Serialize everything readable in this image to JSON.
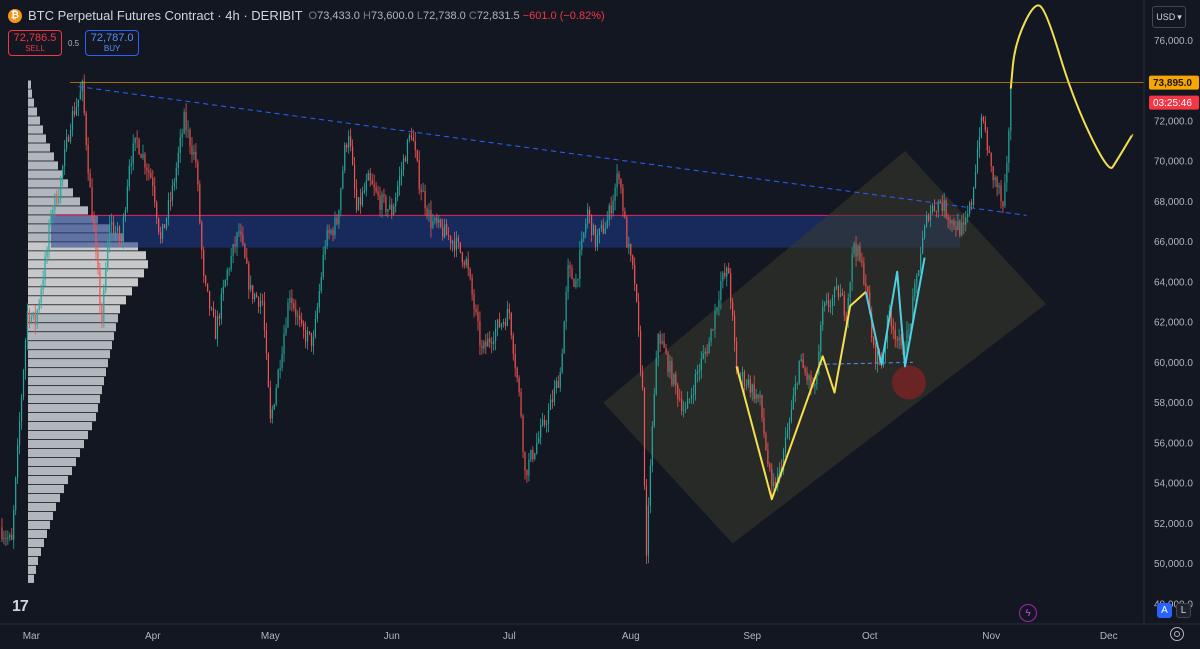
{
  "header": {
    "title": "BTC Perpetual Futures Contract · 4h · DERIBIT",
    "open_label": "O",
    "open": "73,433.0",
    "high_label": "H",
    "high": "73,600.0",
    "low_label": "L",
    "low": "72,738.0",
    "close_label": "C",
    "close": "72,831.5",
    "change": "−601.0 (−0.82%)",
    "icon": "bitcoin-icon"
  },
  "trade": {
    "sell_price": "72,786.5",
    "sell_label": "SELL",
    "spread": "0.5",
    "buy_price": "72,787.0",
    "buy_label": "BUY"
  },
  "currency": "USD",
  "price_tags": {
    "last": "73,895.0",
    "countdown": "03:25:46"
  },
  "scale_buttons": {
    "auto": "A",
    "log": "L"
  },
  "colors": {
    "background": "#131722",
    "up": "#26a69a",
    "down": "#ef5350",
    "last_price": "#f7a600",
    "countdown": "#f23645",
    "trendline": "#2962ff",
    "zone": "#1e3a8a",
    "projection": "#f4e04d",
    "buy": "#2962ff",
    "sell": "#f23645"
  },
  "icons": [
    "bitcoin-icon",
    "tradingview-logo",
    "lightning-icon",
    "settings-icon",
    "chevron-down-icon"
  ],
  "chart_data": {
    "type": "candlestick",
    "title": "BTC Perpetual Futures Contract · 4h · DERIBIT",
    "ylim": [
      47000,
      78000
    ],
    "grid": false,
    "y_ticks": [
      "76,000.0",
      "74,000.0",
      "72,000.0",
      "70,000.0",
      "68,000.0",
      "66,000.0",
      "64,000.0",
      "62,000.0",
      "60,000.0",
      "58,000.0",
      "56,000.0",
      "54,000.0",
      "52,000.0",
      "50,000.0",
      "48,000.0"
    ],
    "y_tick_values": [
      76000,
      74000,
      72000,
      70000,
      68000,
      66000,
      64000,
      62000,
      60000,
      58000,
      56000,
      54000,
      52000,
      50000,
      48000
    ],
    "x_ticks": [
      "Mar",
      "Apr",
      "May",
      "Jun",
      "Jul",
      "Aug",
      "Sep",
      "Oct",
      "Nov",
      "Dec"
    ],
    "x_tick_dates": [
      "2024-03-01",
      "2024-04-01",
      "2024-05-01",
      "2024-06-01",
      "2024-07-01",
      "2024-08-01",
      "2024-09-01",
      "2024-10-01",
      "2024-11-01",
      "2024-12-01"
    ],
    "x_range": [
      "2024-02-22",
      "2024-12-10"
    ],
    "price_path": [
      [
        "2024-02-22",
        51800
      ],
      [
        "2024-02-25",
        51000
      ],
      [
        "2024-02-27",
        57000
      ],
      [
        "2024-02-29",
        62500
      ],
      [
        "2024-03-02",
        62000
      ],
      [
        "2024-03-05",
        65500
      ],
      [
        "2024-03-06",
        67500
      ],
      [
        "2024-03-08",
        68500
      ],
      [
        "2024-03-11",
        72000
      ],
      [
        "2024-03-14",
        73600
      ],
      [
        "2024-03-16",
        68500
      ],
      [
        "2024-03-19",
        62000
      ],
      [
        "2024-03-21",
        67000
      ],
      [
        "2024-03-24",
        66000
      ],
      [
        "2024-03-26",
        70000
      ],
      [
        "2024-03-28",
        71000
      ],
      [
        "2024-04-01",
        69000
      ],
      [
        "2024-04-03",
        66000
      ],
      [
        "2024-04-06",
        68500
      ],
      [
        "2024-04-09",
        72000
      ],
      [
        "2024-04-12",
        70000
      ],
      [
        "2024-04-14",
        64000
      ],
      [
        "2024-04-17",
        61500
      ],
      [
        "2024-04-20",
        64500
      ],
      [
        "2024-04-23",
        66500
      ],
      [
        "2024-04-26",
        63500
      ],
      [
        "2024-04-29",
        63000
      ],
      [
        "2024-05-01",
        57000
      ],
      [
        "2024-05-03",
        59500
      ],
      [
        "2024-05-06",
        63500
      ],
      [
        "2024-05-09",
        61500
      ],
      [
        "2024-05-12",
        61000
      ],
      [
        "2024-05-15",
        66000
      ],
      [
        "2024-05-18",
        67000
      ],
      [
        "2024-05-20",
        70500
      ],
      [
        "2024-05-21",
        71500
      ],
      [
        "2024-05-23",
        67500
      ],
      [
        "2024-05-26",
        69000
      ],
      [
        "2024-05-29",
        68000
      ],
      [
        "2024-06-01",
        67500
      ],
      [
        "2024-06-04",
        70000
      ],
      [
        "2024-06-06",
        71500
      ],
      [
        "2024-06-08",
        69000
      ],
      [
        "2024-06-11",
        67000
      ],
      [
        "2024-06-14",
        66500
      ],
      [
        "2024-06-17",
        66000
      ],
      [
        "2024-06-20",
        65000
      ],
      [
        "2024-06-24",
        60500
      ],
      [
        "2024-06-27",
        61500
      ],
      [
        "2024-07-01",
        62500
      ],
      [
        "2024-07-04",
        57500
      ],
      [
        "2024-07-05",
        54500
      ],
      [
        "2024-07-08",
        56000
      ],
      [
        "2024-07-11",
        57500
      ],
      [
        "2024-07-14",
        59500
      ],
      [
        "2024-07-16",
        64500
      ],
      [
        "2024-07-18",
        64000
      ],
      [
        "2024-07-21",
        67500
      ],
      [
        "2024-07-23",
        66000
      ],
      [
        "2024-07-26",
        67000
      ],
      [
        "2024-07-29",
        69500
      ],
      [
        "2024-07-31",
        66000
      ],
      [
        "2024-08-02",
        64000
      ],
      [
        "2024-08-04",
        58500
      ],
      [
        "2024-08-05",
        50000
      ],
      [
        "2024-08-06",
        55000
      ],
      [
        "2024-08-08",
        61500
      ],
      [
        "2024-08-12",
        59000
      ],
      [
        "2024-08-15",
        57500
      ],
      [
        "2024-08-18",
        59500
      ],
      [
        "2024-08-21",
        61000
      ],
      [
        "2024-08-24",
        64000
      ],
      [
        "2024-08-26",
        64500
      ],
      [
        "2024-08-28",
        59500
      ],
      [
        "2024-08-31",
        59000
      ],
      [
        "2024-09-03",
        58000
      ],
      [
        "2024-09-06",
        53500
      ],
      [
        "2024-09-08",
        54500
      ],
      [
        "2024-09-11",
        57500
      ],
      [
        "2024-09-13",
        60000
      ],
      [
        "2024-09-17",
        58500
      ],
      [
        "2024-09-19",
        62500
      ],
      [
        "2024-09-23",
        63500
      ],
      [
        "2024-09-25",
        62500
      ],
      [
        "2024-09-27",
        66000
      ],
      [
        "2024-09-30",
        64000
      ],
      [
        "2024-10-02",
        60500
      ],
      [
        "2024-10-04",
        60000
      ],
      [
        "2024-10-06",
        62500
      ],
      [
        "2024-10-09",
        60500
      ],
      [
        "2024-10-11",
        61500
      ],
      [
        "2024-10-14",
        65500
      ],
      [
        "2024-10-16",
        67500
      ],
      [
        "2024-10-19",
        68000
      ],
      [
        "2024-10-22",
        67000
      ],
      [
        "2024-10-25",
        66500
      ],
      [
        "2024-10-27",
        68000
      ],
      [
        "2024-10-29",
        71500
      ],
      [
        "2024-10-30",
        72000
      ],
      [
        "2024-11-01",
        69500
      ],
      [
        "2024-11-03",
        68500
      ],
      [
        "2024-11-04",
        67500
      ],
      [
        "2024-11-05",
        69500
      ],
      [
        "2024-11-06",
        73895
      ]
    ],
    "annotations": {
      "last_price_line": 73895,
      "trendline": [
        [
          "2024-03-13",
          73700
        ],
        [
          "2024-11-10",
          67300
        ]
      ],
      "resistance_zone": {
        "from": "2024-03-06",
        "to": "2024-10-24",
        "top": 67300,
        "bottom": 65700
      },
      "channel": [
        [
          "2024-07-25",
          58000
        ],
        [
          "2024-10-10",
          70500
        ],
        [
          "2024-11-15",
          62900
        ],
        [
          "2024-08-27",
          51000
        ]
      ],
      "neckline": [
        [
          "2024-09-18",
          59900
        ],
        [
          "2024-10-12",
          60000
        ]
      ],
      "circle": [
        "2024-10-11",
        59000
      ],
      "yellow_path": [
        [
          "2024-08-28",
          59800
        ],
        [
          "2024-09-06",
          53200
        ],
        [
          "2024-09-19",
          60300
        ],
        [
          "2024-09-22",
          58500
        ],
        [
          "2024-09-26",
          62800
        ],
        [
          "2024-09-30",
          63500
        ]
      ],
      "cyan_path": [
        [
          "2024-09-30",
          63500
        ],
        [
          "2024-10-04",
          59900
        ],
        [
          "2024-10-08",
          64500
        ],
        [
          "2024-10-10",
          59800
        ],
        [
          "2024-10-15",
          65200
        ]
      ],
      "projection": [
        [
          "2024-11-06",
          73600
        ],
        [
          "2024-11-07",
          75800
        ],
        [
          "2024-11-12",
          77900
        ],
        [
          "2024-11-15",
          77500
        ],
        [
          "2024-11-22",
          73000
        ],
        [
          "2024-12-01",
          69400
        ],
        [
          "2024-12-03",
          70000
        ],
        [
          "2024-12-07",
          71300
        ]
      ]
    },
    "volume_profile": {
      "bins_top_to_bottom": [
        3,
        4,
        6,
        9,
        12,
        15,
        18,
        22,
        26,
        30,
        35,
        40,
        45,
        52,
        60,
        70,
        82,
        95,
        110,
        118,
        120,
        116,
        110,
        104,
        98,
        92,
        90,
        88,
        86,
        84,
        82,
        80,
        78,
        76,
        74,
        72,
        70,
        68,
        64,
        60,
        56,
        52,
        48,
        44,
        40,
        36,
        32,
        28,
        25,
        22,
        19,
        16,
        13,
        10,
        8,
        6
      ],
      "range": [
        74000,
        49000
      ]
    }
  }
}
